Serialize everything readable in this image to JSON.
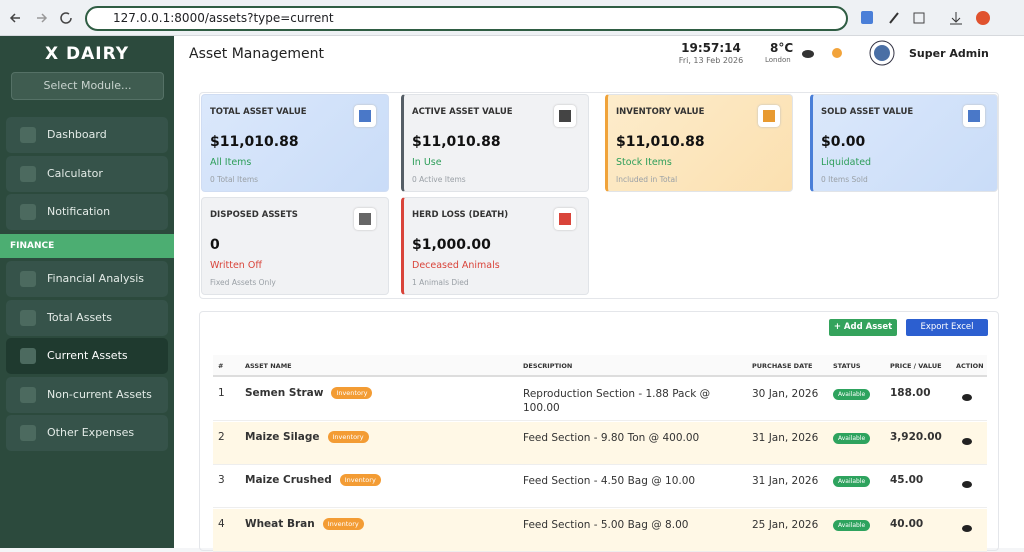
{
  "browser": {
    "url": "127.0.0.1:8000/assets?type=current"
  },
  "sidebar": {
    "brand": "X DAIRY",
    "module_select": "Select Module...",
    "items": [
      "Dashboard",
      "Calculator",
      "Notification"
    ],
    "section": "FINANCE",
    "finance_items": [
      "Financial Analysis",
      "Total Assets",
      "Current Assets",
      "Non-current Assets",
      "Other Expenses"
    ]
  },
  "header": {
    "title": "Asset Management",
    "time": "19:57:14",
    "date": "Fri, 13 Feb 2026",
    "temperature": "8°C",
    "city": "London",
    "user": "Super Admin"
  },
  "cards": [
    {
      "title": "TOTAL ASSET VALUE",
      "value": "$11,010.88",
      "status": "All Items",
      "note": "0 Total Items"
    },
    {
      "title": "ACTIVE ASSET VALUE",
      "value": "$11,010.88",
      "status": "In Use",
      "note": "0 Active Items"
    },
    {
      "title": "INVENTORY VALUE",
      "value": "$11,010.88",
      "status": "Stock Items",
      "note": "Included in Total"
    },
    {
      "title": "SOLD ASSET VALUE",
      "value": "$0.00",
      "status": "Liquidated",
      "note": "0 Items Sold"
    },
    {
      "title": "DISPOSED ASSETS",
      "value": "0",
      "status": "Written Off",
      "note": "Fixed Assets Only"
    },
    {
      "title": "HERD LOSS (DEATH)",
      "value": "$1,000.00",
      "status": "Deceased Animals",
      "note": "1 Animals Died"
    }
  ],
  "table": {
    "buttons": [
      "+ Add Asset",
      "Export Excel"
    ],
    "columns": [
      "#",
      "ASSET NAME",
      "DESCRIPTION",
      "PURCHASE DATE",
      "STATUS",
      "PRICE / VALUE",
      "ACTION"
    ],
    "rows": [
      [
        "1",
        "Semen Straw",
        "Inventory",
        "Reproduction Section - 1.88 Pack @ 100.00",
        "30 Jan, 2026",
        "Available",
        "188.00"
      ],
      [
        "2",
        "Maize Silage",
        "Inventory",
        "Feed Section - 9.80 Ton @ 400.00",
        "31 Jan, 2026",
        "Available",
        "3,920.00"
      ],
      [
        "3",
        "Maize Crushed",
        "Inventory",
        "Feed Section - 4.50 Bag @ 10.00",
        "31 Jan, 2026",
        "Available",
        "45.00"
      ],
      [
        "4",
        "Wheat Bran",
        "Inventory",
        "Feed Section - 5.00 Bag @ 8.00",
        "25 Jan, 2026",
        "Available",
        "40.00"
      ]
    ]
  }
}
